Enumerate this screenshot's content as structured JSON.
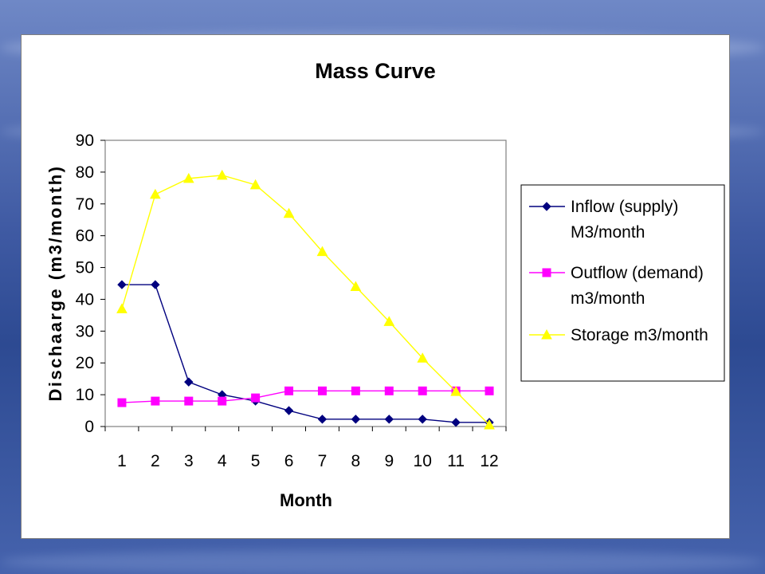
{
  "chart_data": {
    "type": "line",
    "title": "Mass Curve",
    "xlabel": "Month",
    "ylabel": "Dischaarge (m3/month)",
    "categories": [
      "1",
      "2",
      "3",
      "4",
      "5",
      "6",
      "7",
      "8",
      "9",
      "10",
      "11",
      "12"
    ],
    "ylim": [
      0,
      90
    ],
    "yticks": [
      0,
      10,
      20,
      30,
      40,
      50,
      60,
      70,
      80,
      90
    ],
    "grid": false,
    "legend_position": "right",
    "series": [
      {
        "name": "Inflow (supply) M3/month",
        "legend_lines": [
          "Inflow (supply)",
          "M3/month"
        ],
        "color": "#00007f",
        "marker": "diamond",
        "values": [
          44.6,
          44.6,
          14,
          10,
          8,
          5,
          2.3,
          2.3,
          2.3,
          2.3,
          1.3,
          1.3
        ]
      },
      {
        "name": "Outflow (demand) m3/month",
        "legend_lines": [
          "Outflow (demand)",
          "m3/month"
        ],
        "color": "#ff00ff",
        "marker": "square",
        "values": [
          7.5,
          8,
          8,
          8,
          9,
          11.2,
          11.2,
          11.2,
          11.2,
          11.2,
          11.2,
          11.2
        ]
      },
      {
        "name": "Storage m3/month",
        "legend_lines": [
          "Storage m3/month"
        ],
        "color": "#ffff00",
        "marker": "triangle",
        "values": [
          37,
          73,
          78,
          79,
          76,
          67,
          55,
          44,
          33,
          21.5,
          11,
          0.5
        ]
      }
    ]
  }
}
